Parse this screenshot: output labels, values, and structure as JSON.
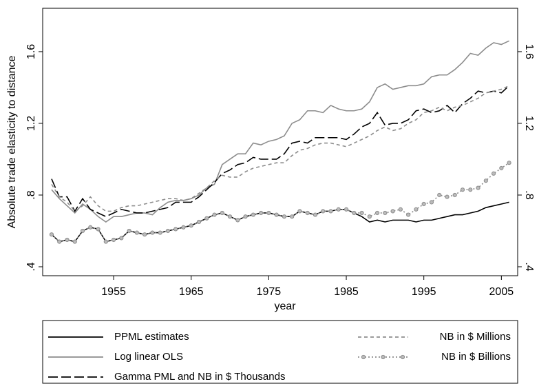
{
  "chart_data": {
    "type": "line",
    "y_label": "Absolute trade elasticity to distance",
    "x_label": "year",
    "x": [
      1947,
      1948,
      1949,
      1950,
      1951,
      1952,
      1953,
      1954,
      1955,
      1956,
      1957,
      1958,
      1959,
      1960,
      1961,
      1962,
      1963,
      1964,
      1965,
      1966,
      1967,
      1968,
      1969,
      1970,
      1971,
      1972,
      1973,
      1974,
      1975,
      1976,
      1977,
      1978,
      1979,
      1980,
      1981,
      1982,
      1983,
      1984,
      1985,
      1986,
      1987,
      1988,
      1989,
      1990,
      1991,
      1992,
      1993,
      1994,
      1995,
      1996,
      1997,
      1998,
      1999,
      2000,
      2001,
      2002,
      2003,
      2004,
      2005,
      2006
    ],
    "xlim": [
      1945.85,
      2007.1
    ],
    "xticks": [
      1955,
      1965,
      1975,
      1985,
      1995,
      2005
    ],
    "ylim": [
      0.35,
      1.842
    ],
    "yticks": [
      {
        "value": 0.4,
        "label": ".4"
      },
      {
        "value": 0.8,
        "label": ".8"
      },
      {
        "value": 1.2,
        "label": "1.2"
      },
      {
        "value": 1.6,
        "label": "1.6"
      }
    ],
    "grid": false,
    "series": [
      {
        "name": "PPML estimates",
        "color": "#000000",
        "style": "solid",
        "marker": false,
        "values": [
          0.58,
          0.54,
          0.55,
          0.54,
          0.6,
          0.62,
          0.61,
          0.54,
          0.55,
          0.56,
          0.6,
          0.59,
          0.58,
          0.59,
          0.59,
          0.6,
          0.61,
          0.62,
          0.63,
          0.65,
          0.67,
          0.69,
          0.7,
          0.68,
          0.66,
          0.68,
          0.69,
          0.7,
          0.7,
          0.69,
          0.68,
          0.68,
          0.71,
          0.7,
          0.69,
          0.71,
          0.71,
          0.72,
          0.72,
          0.7,
          0.68,
          0.65,
          0.66,
          0.65,
          0.66,
          0.66,
          0.66,
          0.65,
          0.66,
          0.66,
          0.67,
          0.68,
          0.69,
          0.69,
          0.7,
          0.71,
          0.73,
          0.74,
          0.75,
          0.76
        ]
      },
      {
        "name": "Log linear OLS",
        "color": "#8c8c8c",
        "style": "solid",
        "marker": false,
        "values": [
          0.83,
          0.78,
          0.74,
          0.7,
          0.75,
          0.72,
          0.68,
          0.65,
          0.68,
          0.68,
          0.69,
          0.7,
          0.7,
          0.69,
          0.73,
          0.76,
          0.77,
          0.77,
          0.78,
          0.8,
          0.84,
          0.86,
          0.97,
          1.0,
          1.03,
          1.03,
          1.09,
          1.08,
          1.1,
          1.11,
          1.13,
          1.2,
          1.22,
          1.27,
          1.27,
          1.26,
          1.3,
          1.28,
          1.27,
          1.27,
          1.28,
          1.32,
          1.4,
          1.42,
          1.39,
          1.4,
          1.41,
          1.41,
          1.42,
          1.46,
          1.47,
          1.47,
          1.5,
          1.54,
          1.59,
          1.58,
          1.62,
          1.65,
          1.64,
          1.66
        ]
      },
      {
        "name": "Gamma PML and NB in $ Thousands",
        "color": "#000000",
        "style": "dashed",
        "marker": false,
        "values": [
          0.89,
          0.79,
          0.79,
          0.71,
          0.78,
          0.72,
          0.7,
          0.68,
          0.7,
          0.72,
          0.71,
          0.7,
          0.7,
          0.71,
          0.72,
          0.73,
          0.76,
          0.76,
          0.76,
          0.79,
          0.83,
          0.87,
          0.92,
          0.94,
          0.97,
          0.98,
          1.01,
          1.0,
          1.0,
          1.0,
          1.03,
          1.09,
          1.1,
          1.09,
          1.12,
          1.12,
          1.12,
          1.12,
          1.11,
          1.14,
          1.18,
          1.2,
          1.26,
          1.19,
          1.2,
          1.2,
          1.22,
          1.27,
          1.28,
          1.26,
          1.27,
          1.3,
          1.26,
          1.31,
          1.34,
          1.38,
          1.37,
          1.38,
          1.37,
          1.41
        ]
      },
      {
        "name": "NB in $ Millions",
        "color": "#8c8c8c",
        "style": "shortdash",
        "marker": false,
        "values": [
          0.86,
          0.79,
          0.76,
          0.71,
          0.74,
          0.79,
          0.74,
          0.71,
          0.71,
          0.73,
          0.74,
          0.74,
          0.75,
          0.76,
          0.77,
          0.78,
          0.78,
          0.77,
          0.78,
          0.81,
          0.84,
          0.88,
          0.91,
          0.9,
          0.9,
          0.93,
          0.95,
          0.96,
          0.97,
          0.98,
          0.98,
          1.02,
          1.05,
          1.06,
          1.08,
          1.09,
          1.09,
          1.08,
          1.07,
          1.09,
          1.11,
          1.13,
          1.16,
          1.18,
          1.16,
          1.17,
          1.2,
          1.22,
          1.26,
          1.27,
          1.29,
          1.27,
          1.29,
          1.3,
          1.32,
          1.34,
          1.37,
          1.38,
          1.39,
          1.41
        ]
      },
      {
        "name": "NB in $ Billions",
        "color": "#8c8c8c",
        "style": "dotted",
        "marker": true,
        "values": [
          0.58,
          0.54,
          0.55,
          0.54,
          0.6,
          0.62,
          0.61,
          0.54,
          0.55,
          0.56,
          0.6,
          0.59,
          0.58,
          0.59,
          0.59,
          0.6,
          0.61,
          0.62,
          0.63,
          0.65,
          0.67,
          0.69,
          0.7,
          0.68,
          0.66,
          0.68,
          0.69,
          0.7,
          0.7,
          0.69,
          0.68,
          0.68,
          0.71,
          0.7,
          0.69,
          0.71,
          0.71,
          0.72,
          0.72,
          0.7,
          0.7,
          0.68,
          0.7,
          0.7,
          0.71,
          0.72,
          0.69,
          0.72,
          0.75,
          0.76,
          0.8,
          0.79,
          0.8,
          0.83,
          0.83,
          0.84,
          0.88,
          0.92,
          0.95,
          0.98
        ]
      }
    ]
  }
}
